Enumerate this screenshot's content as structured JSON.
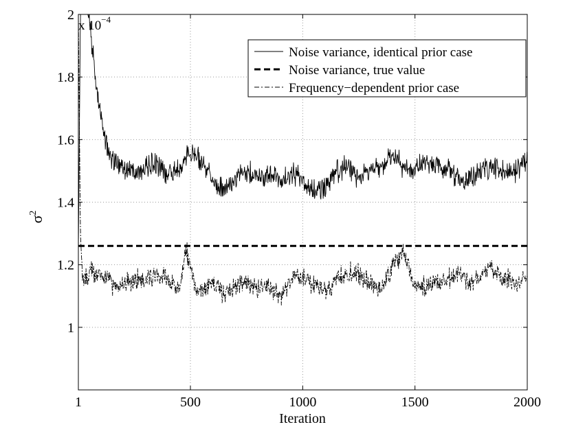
{
  "chart_data": {
    "type": "line",
    "xlabel": "Iteration",
    "ylabel": "σ",
    "ylabel_exponent": "2",
    "scale_factor_prefix": "x 10",
    "scale_factor_exponent": "−4",
    "xlim": [
      1,
      2000
    ],
    "ylim": [
      0.8,
      2.0
    ],
    "xticks": [
      1,
      500,
      1000,
      1500,
      2000
    ],
    "xtick_labels": [
      "1",
      "500",
      "1000",
      "1500",
      "2000"
    ],
    "yticks": [
      1.0,
      1.2,
      1.4,
      1.6,
      1.8,
      2.0
    ],
    "ytick_labels": [
      "1",
      "1.2",
      "1.4",
      "1.6",
      "1.8",
      "2"
    ],
    "grid": true,
    "legend_position": "top-right",
    "series": [
      {
        "name": "Noise variance, identical prior case",
        "style": "solid-thin",
        "color": "#000000",
        "x": [
          1,
          10,
          20,
          40,
          60,
          80,
          100,
          120,
          140,
          160,
          180,
          200,
          250,
          300,
          350,
          400,
          450,
          500,
          550,
          600,
          650,
          700,
          750,
          800,
          850,
          900,
          950,
          1000,
          1050,
          1100,
          1150,
          1200,
          1250,
          1300,
          1350,
          1400,
          1450,
          1500,
          1550,
          1600,
          1650,
          1700,
          1750,
          1800,
          1850,
          1900,
          1950,
          2000
        ],
        "y": [
          1.25,
          2.0,
          2.15,
          2.03,
          1.9,
          1.78,
          1.68,
          1.6,
          1.56,
          1.53,
          1.52,
          1.51,
          1.5,
          1.51,
          1.52,
          1.49,
          1.51,
          1.56,
          1.53,
          1.47,
          1.44,
          1.47,
          1.5,
          1.48,
          1.49,
          1.47,
          1.49,
          1.48,
          1.43,
          1.45,
          1.5,
          1.51,
          1.48,
          1.5,
          1.52,
          1.55,
          1.51,
          1.5,
          1.53,
          1.52,
          1.5,
          1.47,
          1.48,
          1.5,
          1.51,
          1.5,
          1.5,
          1.54
        ]
      },
      {
        "name": "Noise variance, true value",
        "style": "dashed-thick",
        "color": "#000000",
        "x": [
          1,
          2000
        ],
        "y": [
          1.26,
          1.26
        ]
      },
      {
        "name": "Frequency−dependent prior case",
        "style": "dashdot-thin",
        "color": "#000000",
        "x": [
          1,
          10,
          20,
          40,
          60,
          80,
          100,
          150,
          200,
          250,
          300,
          350,
          400,
          450,
          480,
          520,
          550,
          600,
          650,
          700,
          750,
          800,
          850,
          900,
          950,
          1000,
          1050,
          1100,
          1150,
          1200,
          1250,
          1300,
          1350,
          1400,
          1450,
          1480,
          1500,
          1550,
          1600,
          1650,
          1700,
          1750,
          1800,
          1850,
          1900,
          1950,
          2000
        ],
        "y": [
          2.0,
          1.3,
          1.17,
          1.16,
          1.18,
          1.16,
          1.17,
          1.14,
          1.13,
          1.15,
          1.16,
          1.17,
          1.15,
          1.12,
          1.25,
          1.13,
          1.12,
          1.14,
          1.11,
          1.13,
          1.14,
          1.12,
          1.13,
          1.1,
          1.15,
          1.16,
          1.14,
          1.12,
          1.15,
          1.18,
          1.17,
          1.14,
          1.12,
          1.2,
          1.24,
          1.17,
          1.12,
          1.13,
          1.14,
          1.16,
          1.17,
          1.14,
          1.17,
          1.18,
          1.16,
          1.14,
          1.16
        ]
      }
    ]
  }
}
